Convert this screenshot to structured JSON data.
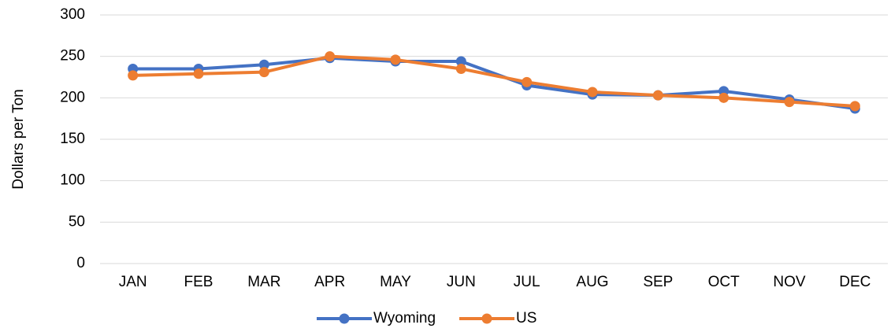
{
  "chart_data": {
    "type": "line",
    "y_label": "Dollars per Ton",
    "categories": [
      "JAN",
      "FEB",
      "MAR",
      "APR",
      "MAY",
      "JUN",
      "JUL",
      "AUG",
      "SEP",
      "OCT",
      "NOV",
      "DEC"
    ],
    "series": [
      {
        "name": "Wyoming",
        "color": "#4472c4",
        "values": [
          235,
          235,
          240,
          248,
          244,
          244,
          215,
          204,
          203,
          208,
          198,
          187
        ]
      },
      {
        "name": "US",
        "color": "#ed7d31",
        "values": [
          227,
          229,
          231,
          250,
          246,
          235,
          219,
          207,
          203,
          200,
          195,
          190
        ]
      }
    ],
    "ylim": [
      0,
      300
    ],
    "yticks": [
      0,
      50,
      100,
      150,
      200,
      250,
      300
    ],
    "grid": true,
    "legend": "bottom"
  }
}
